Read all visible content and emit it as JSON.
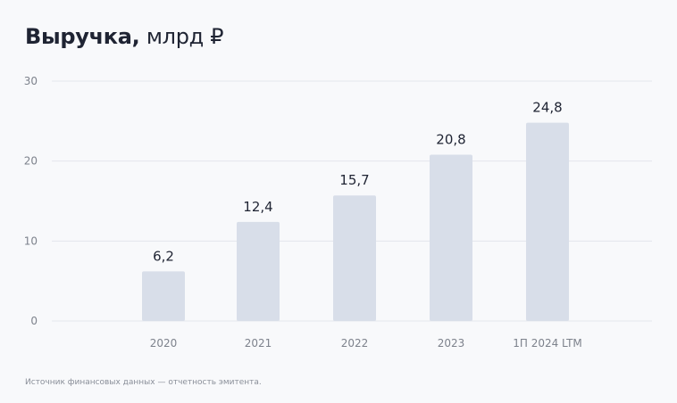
{
  "chart_data": {
    "type": "bar",
    "title": "Выручка,",
    "title_unit": "млрд ₽",
    "categories": [
      "2020",
      "2021",
      "2022",
      "2023",
      "1П 2024 LTM"
    ],
    "values": [
      6.2,
      12.4,
      15.7,
      20.8,
      24.8
    ],
    "data_labels": [
      "6,2",
      "12,4",
      "15,7",
      "20,8",
      "24,8"
    ],
    "ylim": [
      0,
      30
    ],
    "yticks": [
      0,
      10,
      20,
      30
    ],
    "grid": true,
    "legend": "none",
    "colors": {
      "bar": "#d8dee9",
      "grid": "#e3e6ec",
      "label": "#1f2433",
      "tick": "#7d828c"
    }
  },
  "footnote": "Источник финансовых данных — отчетность эмитента."
}
